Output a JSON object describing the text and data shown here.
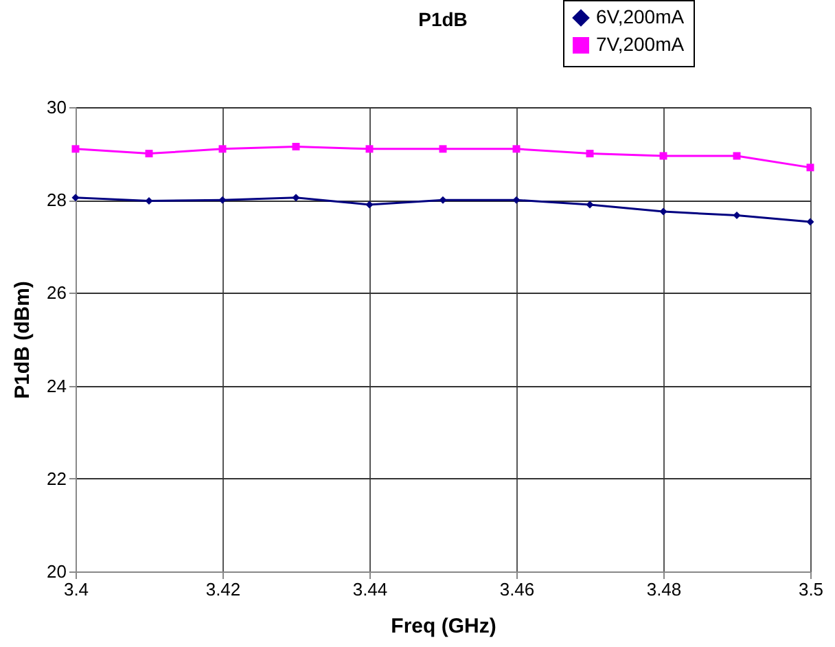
{
  "chart_data": {
    "type": "line",
    "title": "P1dB",
    "xlabel": "Freq (GHz)",
    "ylabel": "P1dB (dBm)",
    "x": [
      3.4,
      3.41,
      3.42,
      3.43,
      3.44,
      3.45,
      3.46,
      3.47,
      3.48,
      3.49,
      3.5
    ],
    "series": [
      {
        "name": "6V,200mA",
        "color": "#000080",
        "marker": "diamond",
        "values": [
          28.05,
          27.98,
          28.0,
          28.05,
          27.9,
          28.0,
          28.0,
          27.9,
          27.75,
          27.67,
          27.53
        ]
      },
      {
        "name": "7V,200mA",
        "color": "#ff00ff",
        "marker": "square",
        "values": [
          29.1,
          29.0,
          29.1,
          29.15,
          29.1,
          29.1,
          29.1,
          29.0,
          28.95,
          28.95,
          28.7
        ]
      }
    ],
    "xlim": [
      3.4,
      3.5
    ],
    "xticks": [
      3.4,
      3.42,
      3.44,
      3.46,
      3.48,
      3.5
    ],
    "ylim": [
      20,
      30
    ],
    "yticks": [
      20,
      22,
      24,
      26,
      28,
      30
    ],
    "grid": true,
    "legend": "top right",
    "line_style": "solid"
  }
}
